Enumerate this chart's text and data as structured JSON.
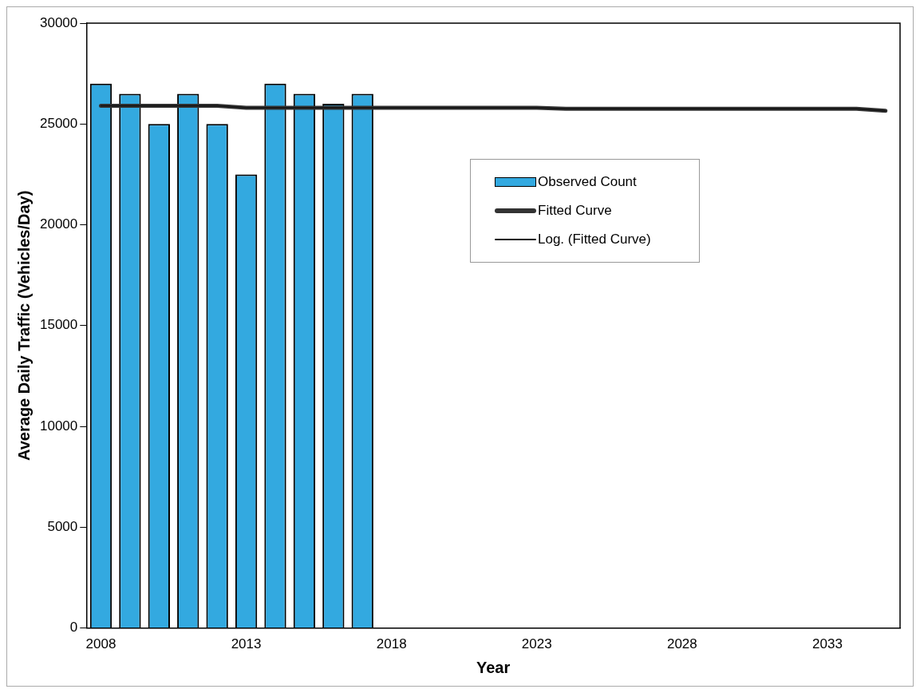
{
  "chart_data": {
    "type": "bar",
    "xlabel": "Year",
    "ylabel": "Average Daily Traffic (Vehicles/Day)",
    "categories": [
      "2008",
      null,
      null,
      null,
      null,
      "2013",
      null,
      null,
      null,
      null,
      "2018",
      null,
      null,
      null,
      null,
      "2023",
      null,
      null,
      null,
      null,
      "2028",
      null,
      null,
      null,
      null,
      "2033",
      null,
      null
    ],
    "series": [
      {
        "name": "Observed Count",
        "color": "#33a9e0",
        "values": [
          27000,
          26500,
          25000,
          26500,
          25000,
          22500,
          27000,
          26500,
          26000,
          26500,
          null,
          null,
          null,
          null,
          null,
          null,
          null,
          null,
          null,
          null,
          null,
          null,
          null,
          null,
          null,
          null,
          null,
          null
        ]
      },
      {
        "name": "Fitted Curve",
        "type": "line",
        "color": "#333333",
        "values": [
          25900,
          25900,
          25900,
          25900,
          25900,
          25800,
          25800,
          25800,
          25800,
          25800,
          25800,
          25800,
          25800,
          25800,
          25800,
          25800,
          25750,
          25750,
          25750,
          25750,
          25750,
          25750,
          25750,
          25750,
          25750,
          25750,
          25750,
          25650
        ]
      },
      {
        "name": "Log. (Fitted Curve)",
        "type": "line",
        "color": "#111111",
        "values": [
          25900,
          25900,
          25900,
          25900,
          25900,
          25800,
          25800,
          25800,
          25800,
          25800,
          25800,
          25800,
          25800,
          25800,
          25800,
          25800,
          25750,
          25750,
          25750,
          25750,
          25750,
          25750,
          25750,
          25750,
          25750,
          25750,
          25750,
          25650
        ]
      }
    ],
    "ylim": [
      0,
      30000
    ],
    "yticks": [
      0,
      5000,
      10000,
      15000,
      20000,
      25000,
      30000
    ],
    "grid": false,
    "legend": "right"
  }
}
